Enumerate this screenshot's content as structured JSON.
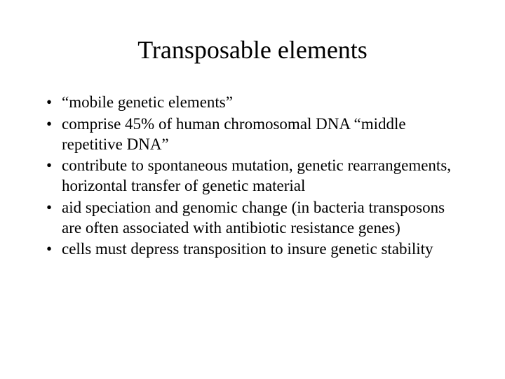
{
  "slide": {
    "title": "Transposable elements",
    "title_fontsize": 36,
    "title_color": "#000000",
    "bullets": [
      "“mobile genetic elements”",
      "comprise 45% of human chromosomal DNA “middle repetitive DNA”",
      "contribute to spontaneous mutation, genetic rearrangements, horizontal transfer of genetic material",
      "aid speciation and genomic change (in bacteria transposons are often associated with antibiotic resistance genes)",
      "cells must depress transposition to insure genetic stability"
    ],
    "body_fontsize": 23,
    "body_color": "#000000",
    "background_color": "#ffffff",
    "font_family": "Times New Roman"
  }
}
